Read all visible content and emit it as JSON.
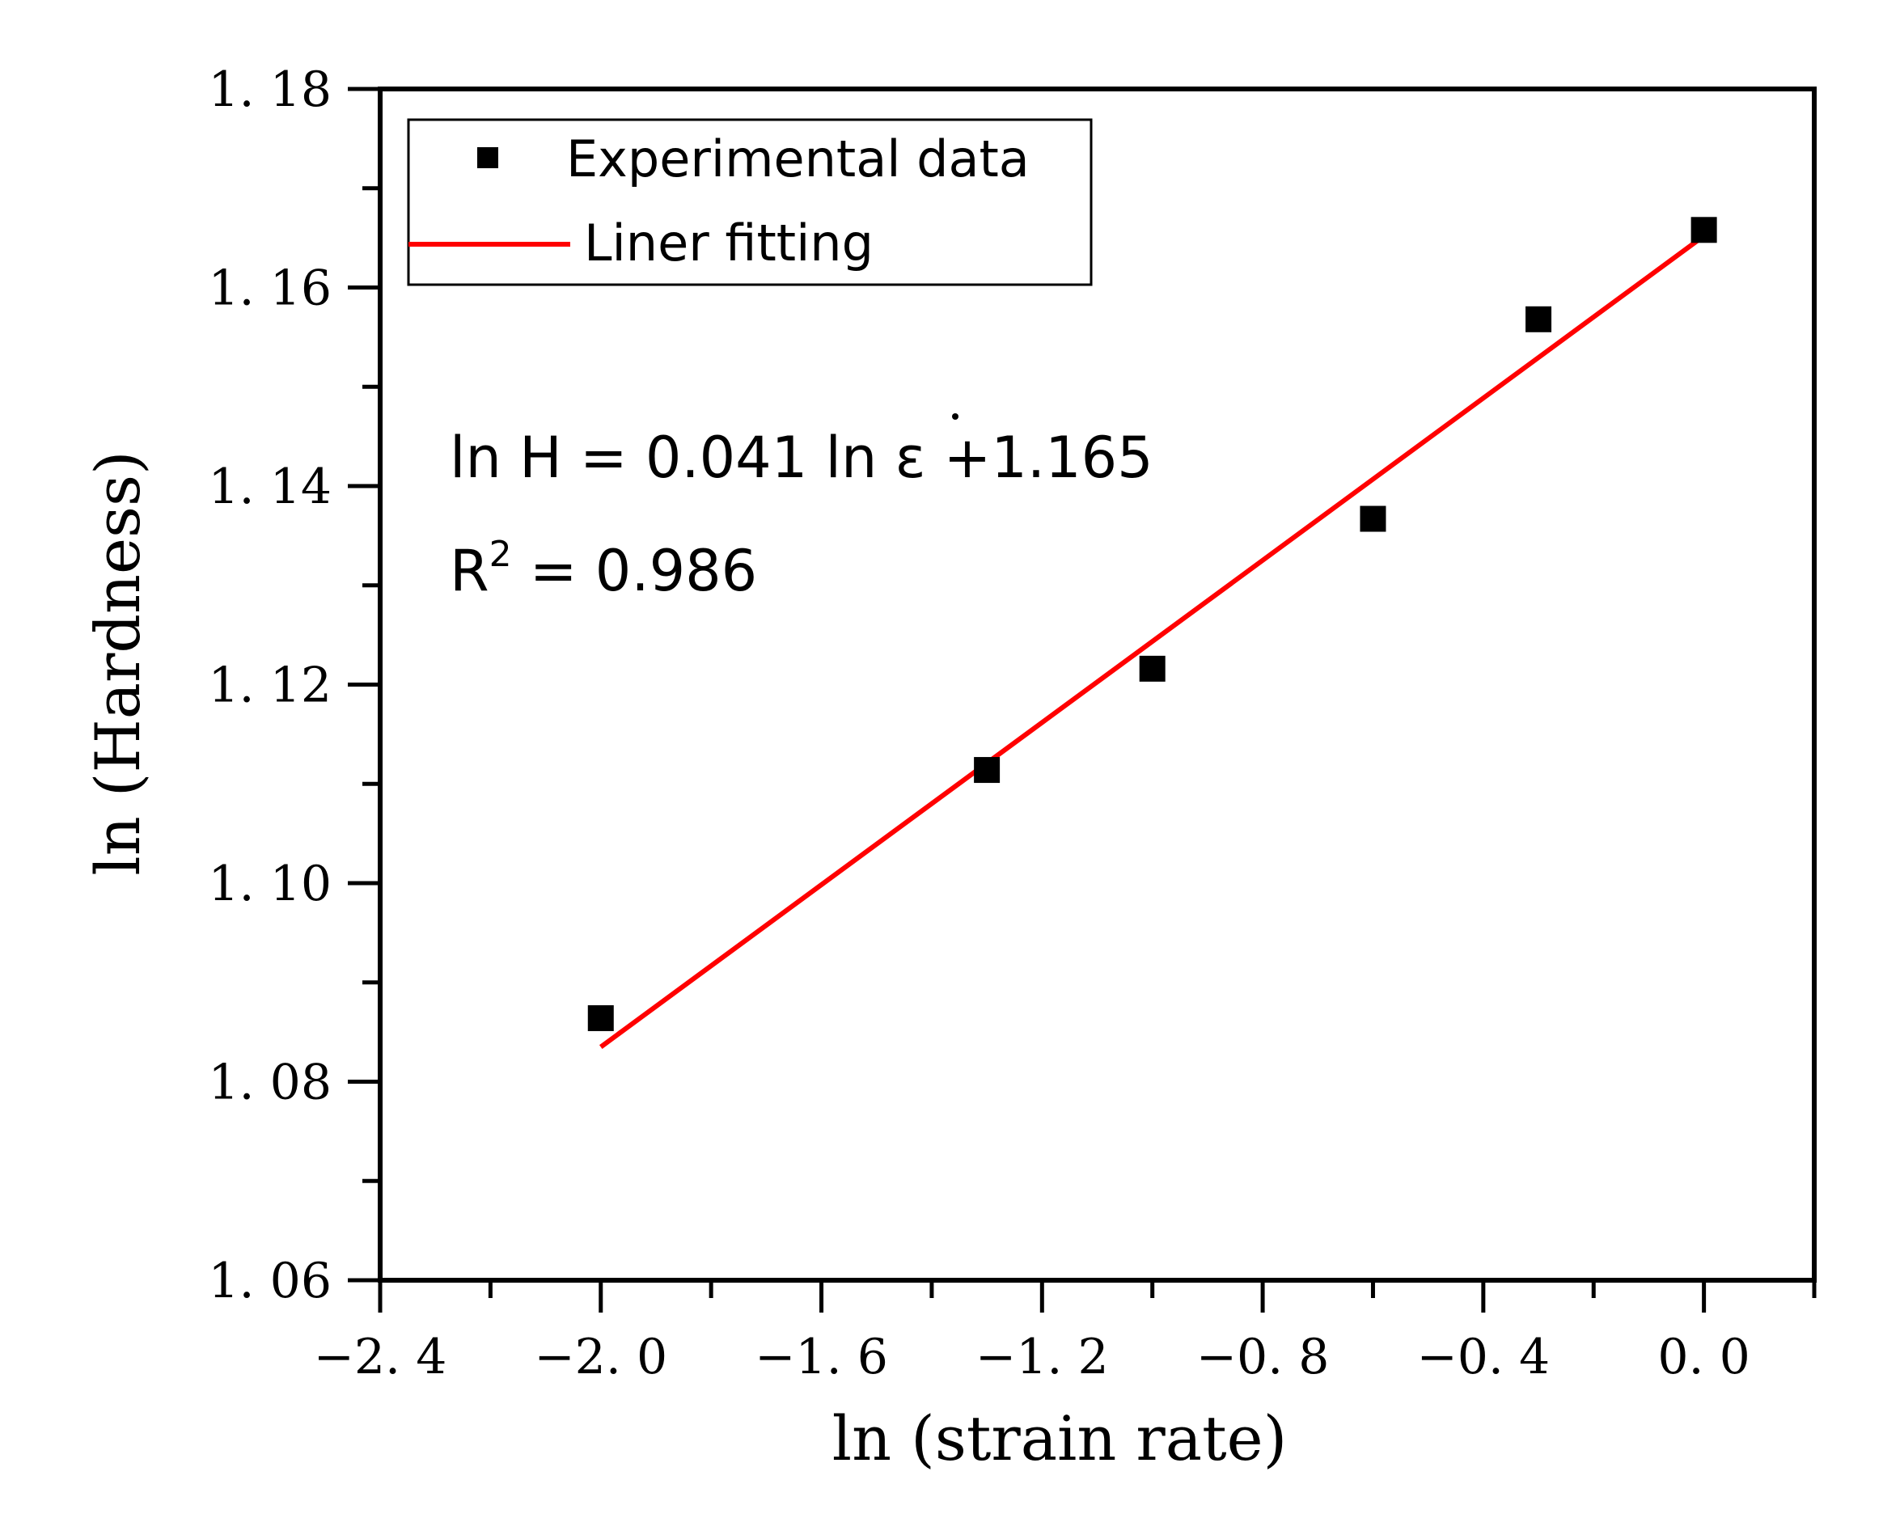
{
  "chart_data": {
    "type": "scatter",
    "title": "",
    "xlabel": "ln (strain rate)",
    "ylabel": "ln (Hardness)",
    "xlim": [
      -2.4,
      0.2
    ],
    "ylim": [
      1.06,
      1.18
    ],
    "xticks": [
      -2.4,
      -2.0,
      -1.6,
      -1.2,
      -0.8,
      -0.4,
      0.0
    ],
    "xtick_labels": [
      "−2. 4",
      "−2. 0",
      "−1. 6",
      "−1. 2",
      "−0. 8",
      "−0. 4",
      "0. 0"
    ],
    "yticks": [
      1.06,
      1.08,
      1.1,
      1.12,
      1.14,
      1.16,
      1.18
    ],
    "ytick_labels": [
      "1. 06",
      "1. 08",
      "1. 10",
      "1. 12",
      "1. 14",
      "1. 16",
      "1. 18"
    ],
    "series": [
      {
        "name": "Experimental data",
        "kind": "scatter",
        "marker": "square",
        "color": "#000000",
        "x": [
          -2.0,
          -1.3,
          -1.0,
          -0.6,
          -0.3,
          0.0
        ],
        "y": [
          1.0864,
          1.1114,
          1.1216,
          1.1367,
          1.1568,
          1.1658
        ]
      },
      {
        "name": "Liner fitting",
        "kind": "line",
        "color": "#ff0000",
        "x": [
          -2.0,
          0.0
        ],
        "y": [
          1.0835,
          1.1652
        ]
      }
    ],
    "legend_position": "top-left",
    "annotations": {
      "equation_prefix": "ln H = 0.041 ln ",
      "equation_symbol": "ε",
      "equation_suffix": " +1.165",
      "r2_base": "R",
      "r2_exp": "2",
      "r2_value": " = 0.986"
    },
    "grid": false
  }
}
